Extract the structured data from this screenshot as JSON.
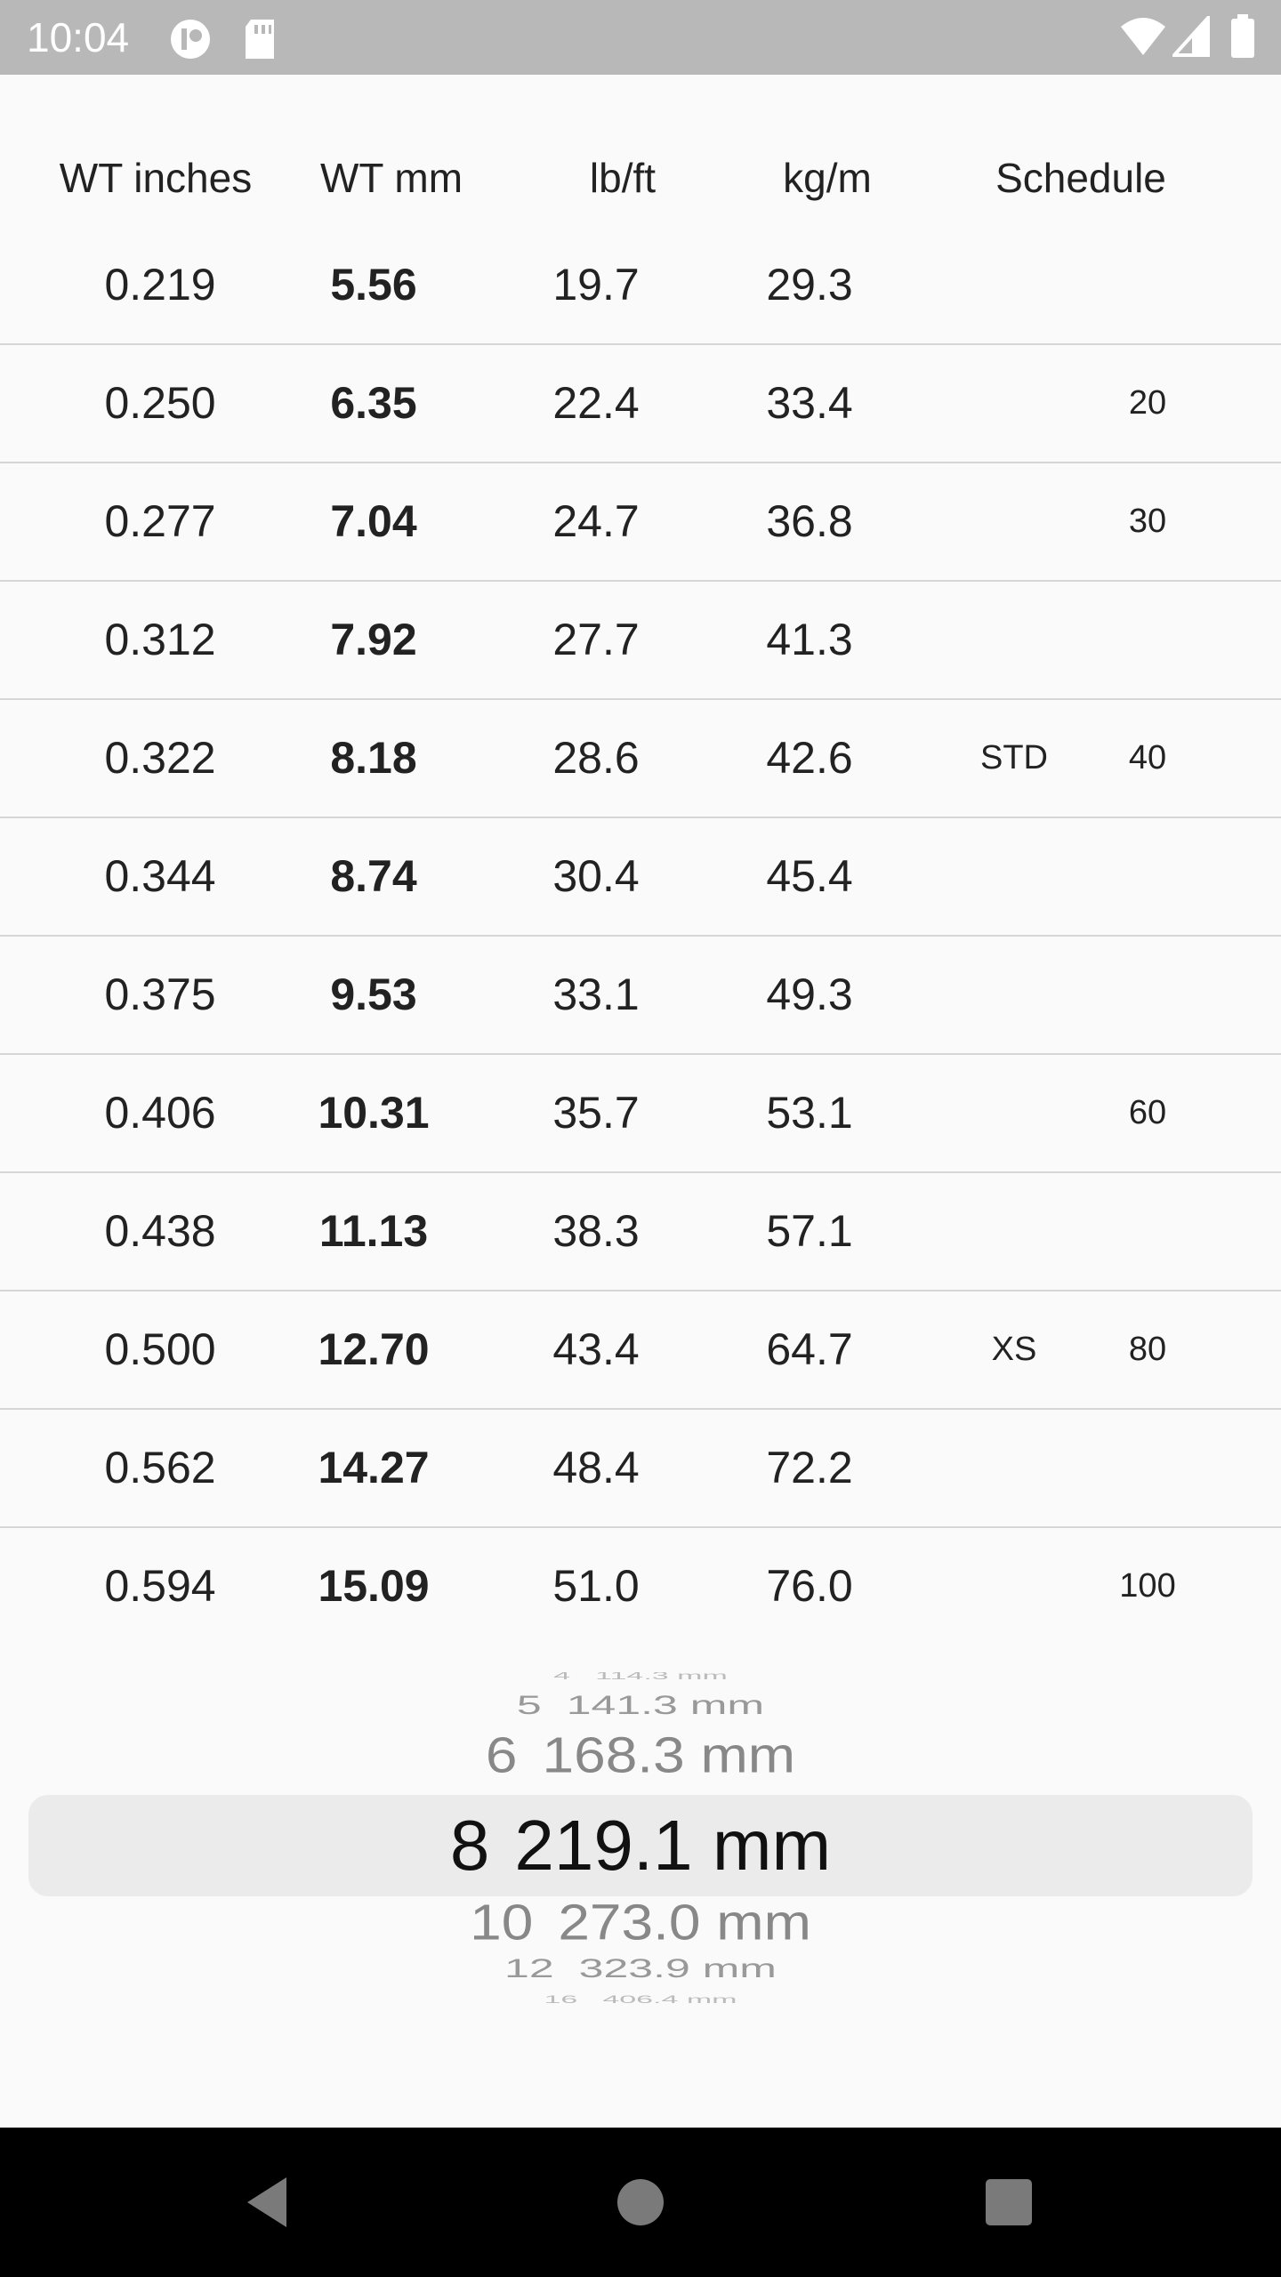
{
  "status_bar": {
    "time": "10:04",
    "icons": [
      "app-notification-icon",
      "sd-card-icon",
      "wifi-icon",
      "signal-icon",
      "battery-icon"
    ]
  },
  "table": {
    "headers": [
      "WT inches",
      "WT mm",
      "lb/ft",
      "kg/m",
      "Schedule"
    ],
    "rows": [
      {
        "wt_in": "0.219",
        "wt_mm": "5.56",
        "lb_ft": "19.7",
        "kg_m": "29.3",
        "std": "",
        "sch": ""
      },
      {
        "wt_in": "0.250",
        "wt_mm": "6.35",
        "lb_ft": "22.4",
        "kg_m": "33.4",
        "std": "",
        "sch": "20"
      },
      {
        "wt_in": "0.277",
        "wt_mm": "7.04",
        "lb_ft": "24.7",
        "kg_m": "36.8",
        "std": "",
        "sch": "30"
      },
      {
        "wt_in": "0.312",
        "wt_mm": "7.92",
        "lb_ft": "27.7",
        "kg_m": "41.3",
        "std": "",
        "sch": ""
      },
      {
        "wt_in": "0.322",
        "wt_mm": "8.18",
        "lb_ft": "28.6",
        "kg_m": "42.6",
        "std": "STD",
        "sch": "40"
      },
      {
        "wt_in": "0.344",
        "wt_mm": "8.74",
        "lb_ft": "30.4",
        "kg_m": "45.4",
        "std": "",
        "sch": ""
      },
      {
        "wt_in": "0.375",
        "wt_mm": "9.53",
        "lb_ft": "33.1",
        "kg_m": "49.3",
        "std": "",
        "sch": ""
      },
      {
        "wt_in": "0.406",
        "wt_mm": "10.31",
        "lb_ft": "35.7",
        "kg_m": "53.1",
        "std": "",
        "sch": "60"
      },
      {
        "wt_in": "0.438",
        "wt_mm": "11.13",
        "lb_ft": "38.3",
        "kg_m": "57.1",
        "std": "",
        "sch": ""
      },
      {
        "wt_in": "0.500",
        "wt_mm": "12.70",
        "lb_ft": "43.4",
        "kg_m": "64.7",
        "std": "XS",
        "sch": "80"
      },
      {
        "wt_in": "0.562",
        "wt_mm": "14.27",
        "lb_ft": "48.4",
        "kg_m": "72.2",
        "std": "",
        "sch": ""
      },
      {
        "wt_in": "0.594",
        "wt_mm": "15.09",
        "lb_ft": "51.0",
        "kg_m": "76.0",
        "std": "",
        "sch": "100"
      }
    ]
  },
  "picker": {
    "items": [
      {
        "size": "4",
        "od": "114.3 mm"
      },
      {
        "size": "5",
        "od": "141.3 mm"
      },
      {
        "size": "6",
        "od": "168.3 mm"
      },
      {
        "size": "8",
        "od": "219.1 mm"
      },
      {
        "size": "10",
        "od": "273.0 mm"
      },
      {
        "size": "12",
        "od": "323.9 mm"
      },
      {
        "size": "16",
        "od": "406.4 mm"
      }
    ],
    "selected_index": 3
  },
  "nav_bar": {
    "buttons": [
      "back-icon",
      "home-icon",
      "recents-icon"
    ]
  }
}
